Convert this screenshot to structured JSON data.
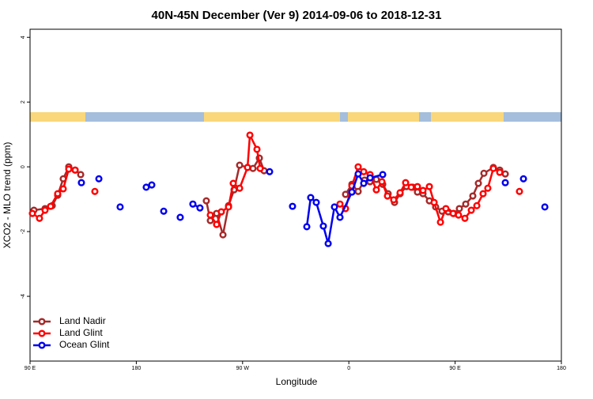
{
  "chart_data": {
    "type": "line",
    "title": "40N-45N December (Ver 9)   2014-09-06 to 2018-12-31",
    "x_label": "Longitude",
    "y_label": "XCO2 - MLO trend (ppm)",
    "xlim": [
      90,
      540
    ],
    "ylim": [
      -6,
      4.25
    ],
    "xticks": [
      {
        "value": 90,
        "label": "90 E"
      },
      180,
      {
        "value": 270,
        "label": "90 W"
      },
      {
        "value": 360,
        "label": "0"
      },
      {
        "value": 450,
        "label": "90 E"
      },
      {
        "value": 540,
        "label": "180"
      }
    ],
    "yticks": [
      -4,
      -2,
      0,
      2,
      4
    ],
    "legend": "bottom-left",
    "series": [
      {
        "name": "Land Nadir",
        "color": "#a52a2a",
        "x": [
          93.3,
          102.7,
          108.8,
          113.4,
          118.1,
          122.8,
          128.2,
          132.9,
          null,
          239.3,
          242.7,
          248,
          253.4,
          258.1,
          262.8,
          267.5,
          274.2,
          278.8,
          284.2,
          288.2,
          null,
          357.2,
          362.6,
          367.9,
          373.3,
          377.9,
          383.3,
          388.7,
          393.3,
          398.7,
          403.4,
          408.8,
          414.1,
          418.1,
          422.8,
          428.2,
          433.5,
          438.9,
          444.2,
          448.9,
          453.6,
          459,
          465,
          469.7,
          474.4,
          482.4,
          487.8,
          492.5
        ],
        "values": [
          -1.34,
          -1.29,
          -1.2,
          -0.88,
          -0.37,
          0,
          -0.1,
          -0.24,
          null,
          -1.05,
          -1.66,
          -1.44,
          -2.1,
          -1.2,
          -0.71,
          0.05,
          -0.02,
          -0.05,
          0.27,
          -0.12,
          null,
          -0.85,
          -0.54,
          -0.76,
          -0.41,
          -0.46,
          -0.39,
          -0.54,
          -0.83,
          -1.1,
          -0.83,
          -0.61,
          -0.63,
          -0.78,
          -0.83,
          -1.05,
          -1.24,
          -1.37,
          -1.39,
          -1.44,
          -1.29,
          -1.15,
          -0.9,
          -0.51,
          -0.2,
          -0.02,
          -0.1,
          -0.22
        ]
      },
      {
        "name": "Land Glint",
        "color": "#ff0000",
        "x": [
          92,
          98,
          102.7,
          107.4,
          113.4,
          118.1,
          122.8,
          128.2,
          null,
          144.9,
          null,
          242.7,
          248,
          252,
          258.1,
          262.1,
          267.5,
          274.2,
          276.2,
          282.2,
          284.9,
          null,
          352.5,
          357.2,
          362.6,
          367.9,
          372.6,
          378,
          383.3,
          388,
          392.7,
          398,
          403.4,
          408.1,
          412.8,
          418.1,
          422.8,
          428.2,
          432.2,
          437.6,
          442.2,
          448.3,
          452.9,
          458.3,
          463.7,
          468.4,
          473.7,
          477.7,
          482.4,
          487.8,
          null,
          504.5
        ],
        "values": [
          -1.44,
          -1.59,
          -1.34,
          -1.22,
          -0.83,
          -0.68,
          -0.07,
          -0.1,
          null,
          -0.76,
          null,
          -1.49,
          -1.78,
          -1.39,
          -1.24,
          -0.51,
          -0.66,
          -0.02,
          0.98,
          0.54,
          -0.05,
          null,
          -1.15,
          -1.29,
          -0.59,
          0,
          -0.15,
          -0.24,
          -0.71,
          -0.46,
          -0.9,
          -1.02,
          -0.8,
          -0.49,
          -0.63,
          -0.61,
          -0.73,
          -0.61,
          -1.1,
          -1.71,
          -1.29,
          -1.44,
          -1.49,
          -1.59,
          -1.34,
          -1.2,
          -0.83,
          -0.66,
          -0.05,
          -0.17,
          null,
          -0.76
        ]
      },
      {
        "name": "Ocean Glint",
        "color": "#0000ee",
        "x": [
          133.5,
          null,
          148.3,
          null,
          166.3,
          null,
          188.4,
          193.1,
          null,
          203.2,
          null,
          217.2,
          null,
          227.9,
          233.9,
          null,
          292.9,
          null,
          312.3,
          null,
          324.4,
          327.7,
          332.4,
          338.4,
          342.5,
          347.8,
          352.5,
          362.6,
          367.9,
          372.6,
          378,
          388.7,
          null,
          492.5,
          null,
          507.9,
          null,
          526
        ],
        "values": [
          -0.49,
          null,
          -0.37,
          null,
          -1.24,
          null,
          -0.63,
          -0.56,
          null,
          -1.37,
          null,
          -1.56,
          null,
          -1.15,
          -1.27,
          null,
          -0.15,
          null,
          -1.22,
          null,
          -1.85,
          -0.95,
          -1.1,
          -1.83,
          -2.37,
          -1.24,
          -1.56,
          -0.78,
          -0.22,
          -0.51,
          -0.34,
          -0.24,
          null,
          -0.49,
          null,
          -0.37,
          null,
          -1.24
        ]
      }
    ]
  }
}
